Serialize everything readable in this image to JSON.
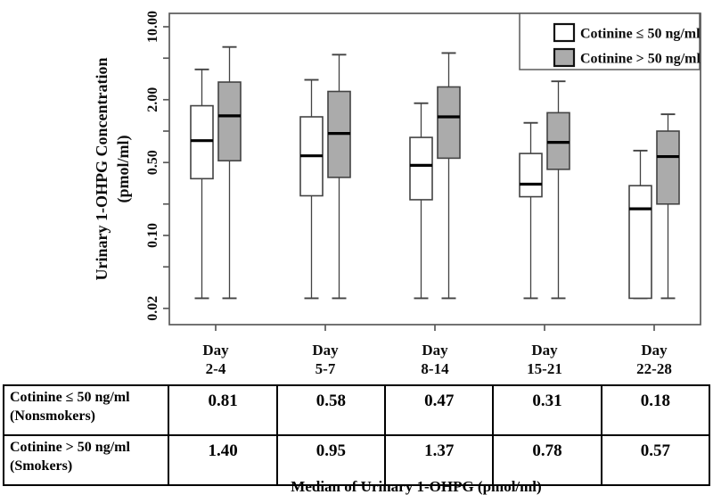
{
  "figure": {
    "caption": "Median of Urinary 1-OHPG (pmol/ml)"
  },
  "chart_data": {
    "type": "boxplot",
    "y_axis": {
      "title_line1": "Urinary 1-OHPG Concentration",
      "title_line2": "(pmol/ml)",
      "scale": "log",
      "range": [
        0.02,
        10
      ],
      "major_ticks": [
        {
          "value": 10,
          "label": "10.00"
        },
        {
          "value": 2,
          "label": "2.00"
        },
        {
          "value": 0.5,
          "label": "0.50"
        },
        {
          "value": 0.1,
          "label": "0.10"
        },
        {
          "value": 0.02,
          "label": "0.02"
        }
      ],
      "minor_ticks": [
        5,
        1,
        0.2,
        0.05
      ]
    },
    "x_axis": {
      "categories": [
        {
          "line1": "Day",
          "line2": "2-4"
        },
        {
          "line1": "Day",
          "line2": "5-7"
        },
        {
          "line1": "Day",
          "line2": "8-14"
        },
        {
          "line1": "Day",
          "line2": "15-21"
        },
        {
          "line1": "Day",
          "line2": "22-28"
        }
      ]
    },
    "legend": {
      "position": "top-right",
      "entries": [
        {
          "label": "Cotinine ≤ 50 ng/ml",
          "fill": "#ffffff"
        },
        {
          "label": "Cotinine > 50 ng/ml",
          "fill": "#ababab"
        }
      ]
    },
    "series": [
      {
        "name": "Cotinine ≤ 50 ng/ml",
        "fill": "#ffffff",
        "boxes": [
          {
            "low": 0.025,
            "q1": 0.35,
            "med": 0.81,
            "q3": 1.75,
            "high": 3.9
          },
          {
            "low": 0.025,
            "q1": 0.24,
            "med": 0.58,
            "q3": 1.37,
            "high": 3.1
          },
          {
            "low": 0.025,
            "q1": 0.22,
            "med": 0.47,
            "q3": 0.87,
            "high": 1.85
          },
          {
            "low": 0.025,
            "q1": 0.235,
            "med": 0.31,
            "q3": 0.61,
            "high": 1.2
          },
          {
            "low": 0.025,
            "q1": 0.025,
            "med": 0.18,
            "q3": 0.3,
            "high": 0.65
          }
        ]
      },
      {
        "name": "Cotinine > 50 ng/ml",
        "fill": "#ababab",
        "boxes": [
          {
            "low": 0.025,
            "q1": 0.52,
            "med": 1.4,
            "q3": 2.95,
            "high": 6.4
          },
          {
            "low": 0.025,
            "q1": 0.36,
            "med": 0.95,
            "q3": 2.4,
            "high": 5.4
          },
          {
            "low": 0.025,
            "q1": 0.55,
            "med": 1.37,
            "q3": 2.65,
            "high": 5.6
          },
          {
            "low": 0.025,
            "q1": 0.43,
            "med": 0.78,
            "q3": 1.5,
            "high": 3.0
          },
          {
            "low": 0.025,
            "q1": 0.2,
            "med": 0.57,
            "q3": 1.0,
            "high": 1.45
          }
        ]
      }
    ],
    "colors": {
      "frame": "#5a5a5a",
      "box_stroke": "#434343",
      "whisker": "#434343",
      "median": "#000000",
      "gray_fill": "#ababab",
      "white_fill": "#ffffff"
    }
  },
  "table": {
    "rows": [
      {
        "label_line1": "Cotinine ≤ 50 ng/ml",
        "label_line2": "(Nonsmokers)",
        "values": [
          "0.81",
          "0.58",
          "0.47",
          "0.31",
          "0.18"
        ]
      },
      {
        "label_line1": "Cotinine > 50 ng/ml",
        "label_line2": "(Smokers)",
        "values": [
          "1.40",
          "0.95",
          "1.37",
          "0.78",
          "0.57"
        ]
      }
    ]
  }
}
